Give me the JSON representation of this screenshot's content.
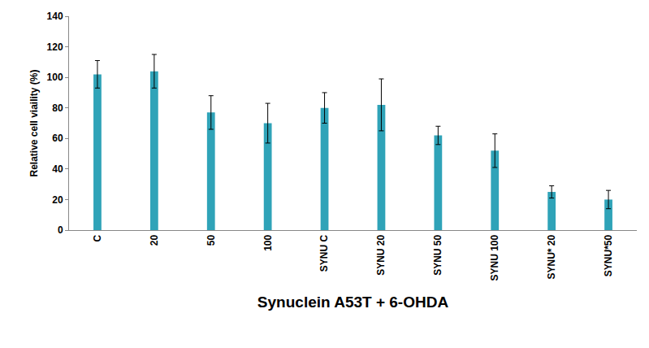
{
  "chart_data": {
    "type": "bar",
    "x_label": "Synuclein A53T + 6-OHDA",
    "y_label": "Relative cell viaility (%)",
    "categories": [
      "C",
      "20",
      "50",
      "100",
      "SYNU C",
      "SYNU 20",
      "SYNU 50",
      "SYNU 100",
      "SYNU* 20",
      "SYNU*50"
    ],
    "values": [
      102,
      104,
      77,
      70,
      80,
      82,
      62,
      52,
      25,
      20
    ],
    "errors": [
      9,
      11,
      11,
      13,
      10,
      17,
      6,
      11,
      4,
      6
    ],
    "color": "#2fa3b8",
    "ylim": [
      0,
      140
    ],
    "yticks": [
      0,
      20,
      40,
      60,
      80,
      100,
      120,
      140
    ],
    "grid": false
  }
}
